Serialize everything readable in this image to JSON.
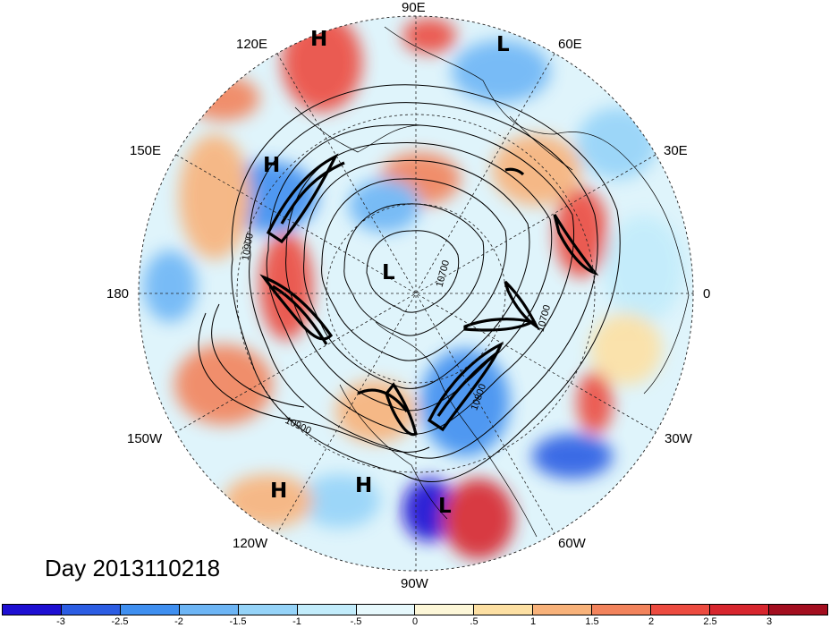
{
  "title": "Day 2013110218",
  "longitude_labels": [
    "90E",
    "60E",
    "30E",
    "0",
    "30W",
    "60W",
    "90W",
    "120W",
    "150W",
    "180",
    "150E",
    "120E"
  ],
  "pressure_markers": [
    "H",
    "L",
    "H",
    "L",
    "L",
    "H",
    "H"
  ],
  "contour_labels": [
    "10900",
    "10700",
    "10700",
    "10800",
    "10900"
  ],
  "colorbar": {
    "ticks": [
      "-3",
      "-2.5",
      "-2",
      "-1.5",
      "-1",
      "-.5",
      "0",
      ".5",
      "1",
      "1.5",
      "2",
      "2.5",
      "3"
    ],
    "colors": [
      "#1e0fd2",
      "#2c5de3",
      "#3f8ff0",
      "#6db5f5",
      "#95d3f8",
      "#c2ecfb",
      "#e6f8fc",
      "#fdf7d8",
      "#fde0a3",
      "#f8b27a",
      "#f2835c",
      "#ec4b40",
      "#d7262e",
      "#a30e1f"
    ]
  }
}
